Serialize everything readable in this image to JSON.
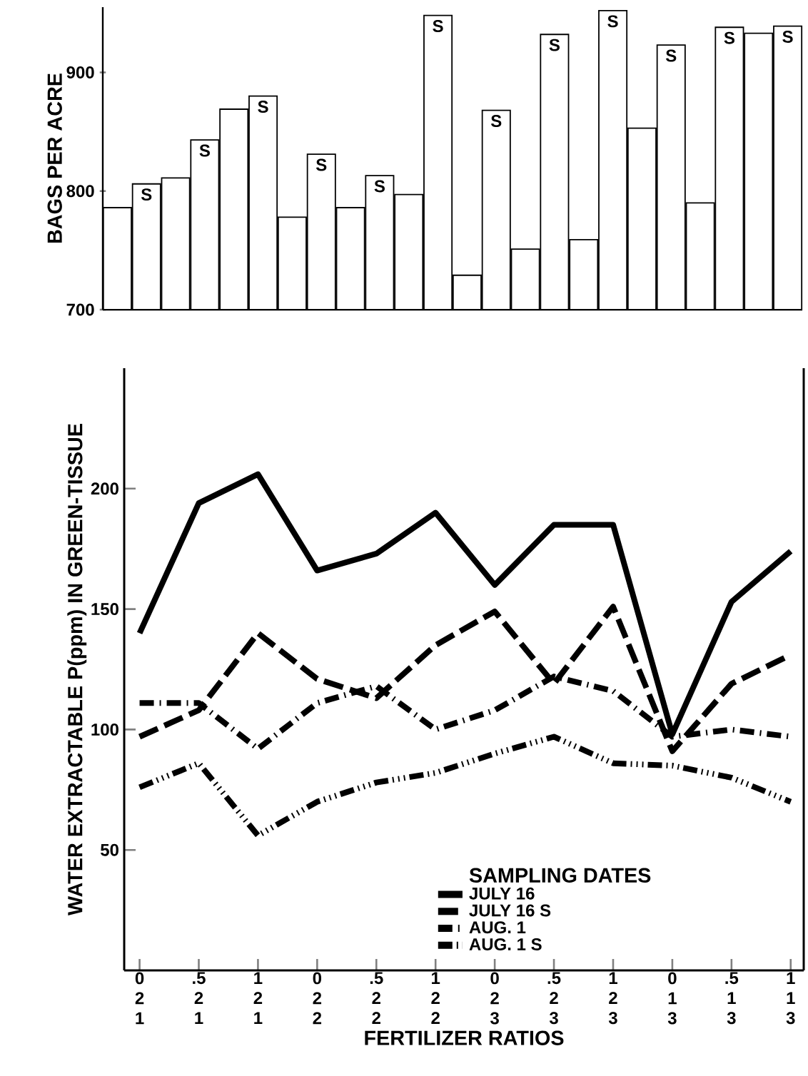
{
  "chart_data": [
    {
      "type": "bar",
      "ylabel": "BAGS PER ACRE",
      "categories": [
        null,
        null,
        null,
        null,
        null,
        null,
        null,
        null,
        null,
        null,
        null,
        null,
        null,
        null,
        null,
        null,
        null,
        null,
        null,
        null,
        null,
        null,
        null,
        null
      ],
      "values": [
        786,
        806,
        811,
        843,
        869,
        880,
        778,
        831,
        786,
        813,
        797,
        948,
        729,
        868,
        751,
        932,
        759,
        952,
        853,
        923,
        790,
        938,
        933,
        939
      ],
      "value_labels": [
        null,
        "S",
        null,
        "S",
        null,
        "S",
        null,
        "S",
        null,
        "S",
        null,
        "S",
        null,
        "S",
        null,
        "S",
        null,
        "S",
        null,
        "S",
        null,
        "S",
        null,
        "S"
      ],
      "color": "#ffffff",
      "ylim": [
        700,
        955
      ],
      "yticks": [
        700,
        800,
        900
      ],
      "tick_labels": "y",
      "grid": false
    },
    {
      "type": "line",
      "xlabel": "FERTILIZER RATIOS",
      "ylabel": "WATER EXTRACTABLE P(ppm) IN GREEN-TISSUE",
      "legend_title": "SAMPLING DATES",
      "categories": [
        "0 2 1",
        ".5 2 1",
        "1 2 1",
        "0 2 2",
        ".5 2 2",
        "1 2 2",
        "0 2 3",
        ".5 2 3",
        "1 2 3",
        "0 1 3",
        ".5 1 3",
        "1 1 3"
      ],
      "series": [
        {
          "name": "JULY 16",
          "color": "#000000",
          "line_style": "solid",
          "values": [
            140,
            194,
            206,
            166,
            173,
            190,
            160,
            185,
            185,
            98,
            153,
            174
          ]
        },
        {
          "name": "JULY 16 S",
          "color": "#000000",
          "line_style": "dashed",
          "values": [
            97,
            108,
            140,
            121,
            113,
            135,
            149,
            119,
            151,
            91,
            119,
            131
          ]
        },
        {
          "name": "AUG. 1",
          "color": "#000000",
          "line_style": "dashdot",
          "values": [
            111,
            111,
            92,
            111,
            118,
            100,
            108,
            122,
            116,
            97,
            100,
            97
          ]
        },
        {
          "name": "AUG. 1 S",
          "color": "#000000",
          "line_style": "dashdotdot",
          "values": [
            76,
            86,
            56,
            70,
            78,
            82,
            90,
            97,
            86,
            85,
            80,
            70
          ]
        }
      ],
      "ylim": [
        0,
        250
      ],
      "yticks": [
        50,
        100,
        150,
        200
      ],
      "legend": "bottom right",
      "marker": "none",
      "grid": false
    }
  ]
}
